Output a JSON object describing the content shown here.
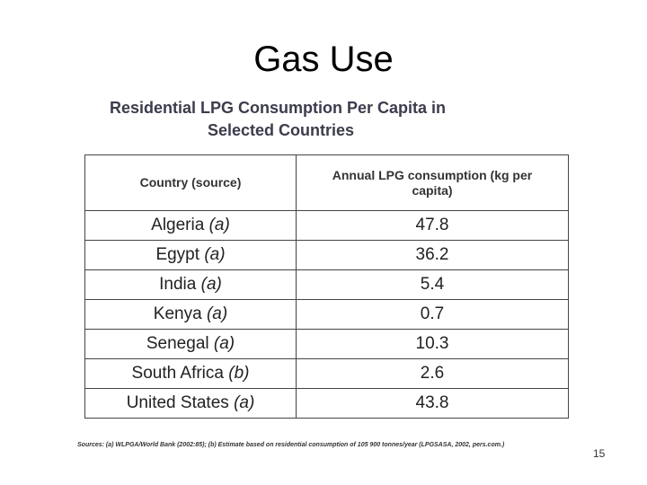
{
  "slide": {
    "title": "Gas Use",
    "page_number": "15"
  },
  "table": {
    "heading_line1": "Residential LPG Consumption Per Capita in",
    "heading_line2": "Selected Countries",
    "header_country": "Country (source)",
    "header_value": "Annual LPG consumption (kg per capita)",
    "rows": [
      {
        "country": "Algeria",
        "source": "(a)",
        "value": "47.8"
      },
      {
        "country": "Egypt",
        "source": "(a)",
        "value": "36.2"
      },
      {
        "country": "India",
        "source": "(a)",
        "value": "5.4"
      },
      {
        "country": "Kenya",
        "source": "(a)",
        "value": "0.7"
      },
      {
        "country": "Senegal",
        "source": "(a)",
        "value": "10.3"
      },
      {
        "country": "South Africa",
        "source": "(b)",
        "value": "2.6"
      },
      {
        "country": "United States",
        "source": "(a)",
        "value": "43.8"
      }
    ],
    "sources_note": "Sources: (a) WLPGA/World Bank (2002:85); (b) Estimate based on residential consumption of 105 900 tonnes/year (LPGSASA, 2002, pers.com.)"
  },
  "colors": {
    "heading": "#3c3c4c",
    "border": "#444444"
  }
}
